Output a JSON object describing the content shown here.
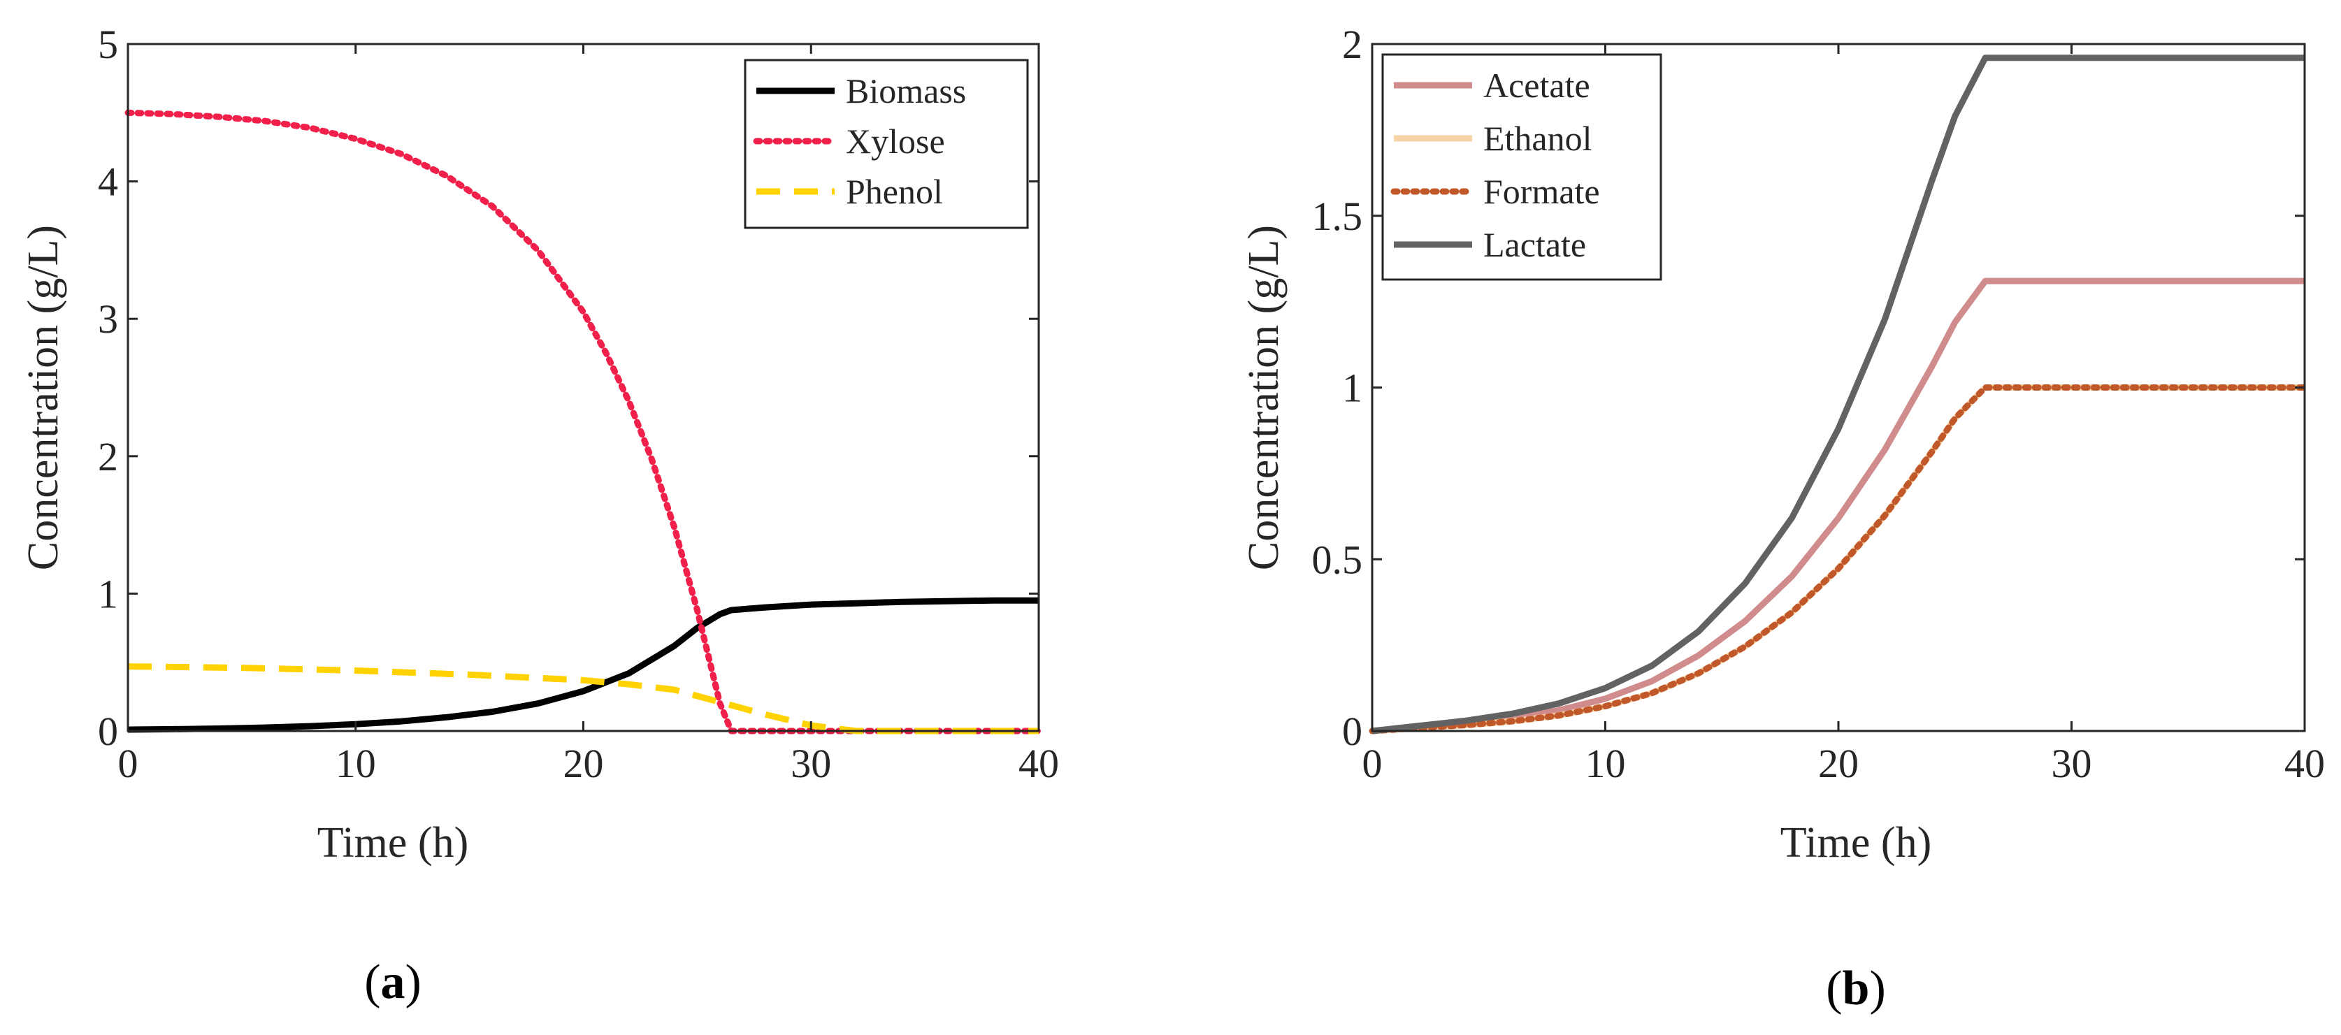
{
  "chart_data": [
    {
      "panel": "a",
      "panel_label_open": "(",
      "panel_label_letter": "a",
      "panel_label_close": ")",
      "type": "line",
      "title": "",
      "xlabel": "Time (h)",
      "ylabel": "Concentration (g/L)",
      "xlim": [
        0,
        40
      ],
      "ylim": [
        0,
        5
      ],
      "xticks": [
        0,
        10,
        20,
        30,
        40
      ],
      "yticks": [
        0,
        1,
        2,
        3,
        4,
        5
      ],
      "legend_position": "top-right",
      "series": [
        {
          "name": "Biomass",
          "color": "#000000",
          "style": "solid",
          "x": [
            0,
            2,
            4,
            6,
            8,
            10,
            12,
            14,
            16,
            18,
            20,
            22,
            24,
            25,
            26,
            26.5,
            28,
            30,
            32,
            34,
            36,
            38,
            40
          ],
          "y": [
            0.01,
            0.013,
            0.018,
            0.025,
            0.035,
            0.05,
            0.07,
            0.1,
            0.14,
            0.2,
            0.29,
            0.42,
            0.62,
            0.75,
            0.85,
            0.88,
            0.9,
            0.92,
            0.93,
            0.94,
            0.945,
            0.95,
            0.95
          ]
        },
        {
          "name": "Xylose",
          "color": "#f0204a",
          "style": "dotted",
          "x": [
            0,
            2,
            4,
            6,
            8,
            10,
            12,
            14,
            16,
            18,
            20,
            21,
            22,
            23,
            24,
            25,
            26,
            26.5,
            28,
            30,
            35,
            40
          ],
          "y": [
            4.5,
            4.49,
            4.47,
            4.44,
            4.39,
            4.31,
            4.2,
            4.04,
            3.82,
            3.5,
            3.05,
            2.75,
            2.4,
            1.98,
            1.48,
            0.88,
            0.2,
            0,
            0,
            0,
            0,
            0
          ]
        },
        {
          "name": "Phenol",
          "color": "#ffd200",
          "style": "dashed",
          "x": [
            0,
            5,
            10,
            15,
            20,
            22,
            24,
            26,
            28,
            30,
            32,
            34,
            40
          ],
          "y": [
            0.47,
            0.46,
            0.44,
            0.41,
            0.37,
            0.34,
            0.3,
            0.21,
            0.12,
            0.04,
            0,
            0,
            0
          ]
        }
      ]
    },
    {
      "panel": "b",
      "panel_label_open": "(",
      "panel_label_letter": "b",
      "panel_label_close": ")",
      "type": "line",
      "title": "",
      "xlabel": "Time (h)",
      "ylabel": "Concentration (g/L)",
      "xlim": [
        0,
        40
      ],
      "ylim": [
        0,
        2
      ],
      "xticks": [
        0,
        10,
        20,
        30,
        40
      ],
      "yticks": [
        0,
        0.5,
        1,
        1.5,
        2
      ],
      "legend_position": "top-left",
      "series": [
        {
          "name": "Acetate",
          "color": "#d08c8c",
          "style": "solid",
          "x": [
            0,
            2,
            4,
            6,
            8,
            10,
            12,
            14,
            16,
            18,
            20,
            22,
            24,
            25,
            26.3,
            28,
            30,
            35,
            40
          ],
          "y": [
            0,
            0.012,
            0.022,
            0.037,
            0.06,
            0.094,
            0.145,
            0.22,
            0.32,
            0.45,
            0.62,
            0.82,
            1.06,
            1.19,
            1.31,
            1.31,
            1.31,
            1.31,
            1.31
          ]
        },
        {
          "name": "Ethanol",
          "color": "#f7d3a8",
          "style": "solid",
          "x": [
            0,
            2,
            4,
            6,
            8,
            10,
            12,
            14,
            16,
            18,
            20,
            22,
            24,
            25,
            26.3,
            28,
            30,
            35,
            40
          ],
          "y": [
            0,
            0.009,
            0.017,
            0.028,
            0.045,
            0.072,
            0.11,
            0.168,
            0.246,
            0.345,
            0.473,
            0.628,
            0.812,
            0.91,
            1.0,
            1.0,
            1.0,
            1.0,
            1.0
          ]
        },
        {
          "name": "Formate",
          "color": "#c0582a",
          "style": "dotted",
          "x": [
            0,
            2,
            4,
            6,
            8,
            10,
            12,
            14,
            16,
            18,
            20,
            22,
            24,
            25,
            26.3,
            28,
            30,
            35,
            40
          ],
          "y": [
            0,
            0.009,
            0.017,
            0.028,
            0.045,
            0.072,
            0.11,
            0.168,
            0.246,
            0.345,
            0.473,
            0.628,
            0.812,
            0.91,
            1.0,
            1.0,
            1.0,
            1.0,
            1.0
          ]
        },
        {
          "name": "Lactate",
          "color": "#626262",
          "style": "solid",
          "x": [
            0,
            2,
            4,
            6,
            8,
            10,
            12,
            14,
            16,
            18,
            20,
            22,
            24,
            25,
            26.3,
            28,
            30,
            35,
            40
          ],
          "y": [
            0,
            0.015,
            0.03,
            0.05,
            0.08,
            0.125,
            0.19,
            0.29,
            0.43,
            0.62,
            0.88,
            1.2,
            1.6,
            1.79,
            1.96,
            1.96,
            1.96,
            1.96,
            1.96
          ]
        }
      ]
    }
  ]
}
